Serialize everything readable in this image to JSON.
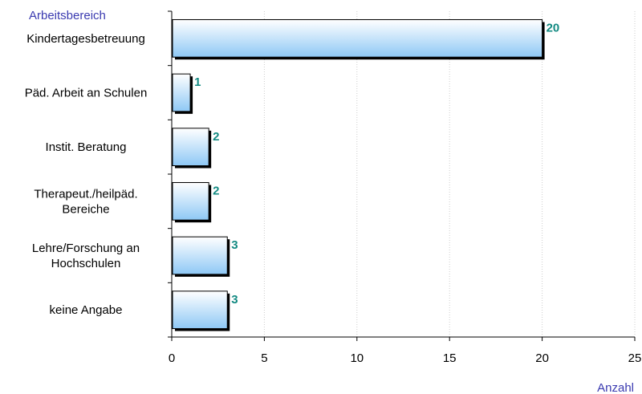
{
  "chart_data": {
    "type": "bar",
    "orientation": "horizontal",
    "categories": [
      [
        "Kindertagesbetreuung"
      ],
      [
        "Päd. Arbeit an Schulen"
      ],
      [
        "Instit. Beratung"
      ],
      [
        "Therapeut./heilpäd.",
        "Bereiche"
      ],
      [
        "Lehre/Forschung an",
        "Hochschulen"
      ],
      [
        "keine Angabe"
      ]
    ],
    "values": [
      20,
      1,
      2,
      2,
      3,
      3
    ],
    "xlabel": "Anzahl",
    "ylabel": "Arbeitsbereich",
    "xlim": [
      0,
      25
    ],
    "xticks": [
      0,
      5,
      10,
      15,
      20,
      25
    ],
    "grid": "vertical dotted",
    "data_labels": true
  },
  "colors": {
    "bar_top": "#ffffff",
    "bar_bottom": "#8ec8f5",
    "bar_border": "#000000",
    "value_label": "#138a82",
    "axis_title": "#3a3ab0",
    "grid": "#cccccc"
  }
}
